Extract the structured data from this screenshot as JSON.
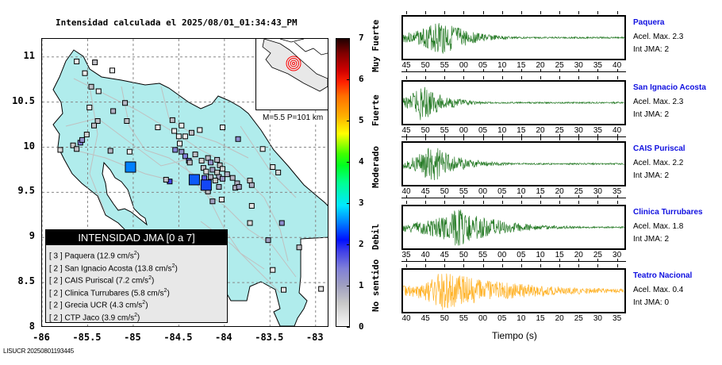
{
  "title": "Intensidad calculada el 2025/08/01_01:34:43_PM",
  "credit": "LISUCR 20250801193445",
  "map": {
    "y_ticks": [
      "11",
      "10.5",
      "10",
      "9.5",
      "9",
      "8.5",
      "8"
    ],
    "x_ticks": [
      "-86",
      "-85.5",
      "-85",
      "-84.5",
      "-84",
      "-83.5",
      "-83"
    ],
    "xlim": [
      -86,
      -82.85
    ],
    "ylim": [
      8,
      11.2
    ],
    "land_color": "#b0ecec",
    "inset_label": "M=5.5 P=101 km",
    "event_marker_color": "#ff0000",
    "stations": [
      {
        "lon": -85.62,
        "lat": 10.95,
        "int": 0
      },
      {
        "lon": -85.42,
        "lat": 10.94,
        "int": 0.6
      },
      {
        "lon": -85.53,
        "lat": 10.82,
        "int": 0.1
      },
      {
        "lon": -85.23,
        "lat": 10.85,
        "int": 0.1
      },
      {
        "lon": -85.38,
        "lat": 10.62,
        "int": 0.1
      },
      {
        "lon": -85.46,
        "lat": 10.67,
        "int": 0.6
      },
      {
        "lon": -85.09,
        "lat": 10.49,
        "int": 0.7
      },
      {
        "lon": -85.48,
        "lat": 10.44,
        "int": 0.1
      },
      {
        "lon": -85.22,
        "lat": 10.4,
        "int": 0.8
      },
      {
        "lon": -85.39,
        "lat": 10.29,
        "int": 0.6
      },
      {
        "lon": -85.07,
        "lat": 10.29,
        "int": 0.6
      },
      {
        "lon": -85.43,
        "lat": 10.24,
        "int": 0.6
      },
      {
        "lon": -85.66,
        "lat": 10.02,
        "int": 0.5
      },
      {
        "lon": -85.62,
        "lat": 9.98,
        "int": 0.6
      },
      {
        "lon": -85.58,
        "lat": 10.05,
        "int": 1.5
      },
      {
        "lon": -85.8,
        "lat": 9.97,
        "int": 0.3
      },
      {
        "lon": -85.51,
        "lat": 10.14,
        "int": 0.4
      },
      {
        "lon": -85.56,
        "lat": 10.08,
        "int": 1.2
      },
      {
        "lon": -85.25,
        "lat": 9.96,
        "int": 0.7
      },
      {
        "lon": -85.04,
        "lat": 9.95,
        "int": 0.1
      },
      {
        "lon": -85.03,
        "lat": 9.78,
        "int": 2.5,
        "big": true
      },
      {
        "lon": -84.6,
        "lat": 9.62,
        "int": 1.8
      },
      {
        "lon": -84.64,
        "lat": 9.64,
        "int": 0.6
      },
      {
        "lon": -84.13,
        "lat": 9.4,
        "int": 1
      },
      {
        "lon": -83.7,
        "lat": 9.35,
        "int": 0.2
      },
      {
        "lon": -83.72,
        "lat": 9.16,
        "int": 0.3
      },
      {
        "lon": -83.37,
        "lat": 9.16,
        "int": 1.3
      },
      {
        "lon": -83.52,
        "lat": 8.97,
        "int": 1
      },
      {
        "lon": -83.18,
        "lat": 8.89,
        "int": 0.6
      },
      {
        "lon": -83.47,
        "lat": 8.64,
        "int": 0.1
      },
      {
        "lon": -83.35,
        "lat": 8.42,
        "int": 0.2
      },
      {
        "lon": -82.94,
        "lat": 8.43,
        "int": 0.2
      },
      {
        "lon": -84.57,
        "lat": 10.3,
        "int": 0.6
      },
      {
        "lon": -84.73,
        "lat": 10.22,
        "int": 0.1
      },
      {
        "lon": -84.55,
        "lat": 10.18,
        "int": 0.1
      },
      {
        "lon": -84.47,
        "lat": 10.24,
        "int": 0.1
      },
      {
        "lon": -84.27,
        "lat": 10.19,
        "int": 0.1
      },
      {
        "lon": -84.02,
        "lat": 10.22,
        "int": 0.1
      },
      {
        "lon": -84.5,
        "lat": 10.12,
        "int": 0.1
      },
      {
        "lon": -84.43,
        "lat": 10.12,
        "int": 0.1
      },
      {
        "lon": -84.36,
        "lat": 10.16,
        "int": 0.6
      },
      {
        "lon": -84.49,
        "lat": 10.04,
        "int": 0.1
      },
      {
        "lon": -83.85,
        "lat": 10.09,
        "int": 1.3
      },
      {
        "lon": -84.54,
        "lat": 9.97,
        "int": 1.4
      },
      {
        "lon": -84.47,
        "lat": 9.95,
        "int": 1.2
      },
      {
        "lon": -84.43,
        "lat": 9.9,
        "int": 1.5
      },
      {
        "lon": -84.39,
        "lat": 9.85,
        "int": 1.6
      },
      {
        "lon": -84.32,
        "lat": 9.92,
        "int": 0.6
      },
      {
        "lon": -84.38,
        "lat": 9.83,
        "int": 0.6
      },
      {
        "lon": -84.25,
        "lat": 9.85,
        "int": 0.4
      },
      {
        "lon": -84.18,
        "lat": 9.88,
        "int": 0.7
      },
      {
        "lon": -84.15,
        "lat": 9.83,
        "int": 1.2
      },
      {
        "lon": -84.08,
        "lat": 9.86,
        "int": 0.7
      },
      {
        "lon": -84.05,
        "lat": 9.8,
        "int": 0.6
      },
      {
        "lon": -84.23,
        "lat": 9.77,
        "int": 0.6
      },
      {
        "lon": -84.2,
        "lat": 9.73,
        "int": 0.3
      },
      {
        "lon": -84.13,
        "lat": 9.75,
        "int": 1
      },
      {
        "lon": -84.08,
        "lat": 9.72,
        "int": 0.5
      },
      {
        "lon": -84.02,
        "lat": 9.76,
        "int": 0.4
      },
      {
        "lon": -84.15,
        "lat": 9.67,
        "int": 0.8
      },
      {
        "lon": -84.06,
        "lat": 9.67,
        "int": 0.9
      },
      {
        "lon": -84.1,
        "lat": 9.63,
        "int": 0.5
      },
      {
        "lon": -84.02,
        "lat": 9.65,
        "int": 1.1
      },
      {
        "lon": -83.97,
        "lat": 9.7,
        "int": 0.8
      },
      {
        "lon": -83.91,
        "lat": 9.66,
        "int": 0.7
      },
      {
        "lon": -83.86,
        "lat": 9.6,
        "int": 0.8
      },
      {
        "lon": -83.88,
        "lat": 9.55,
        "int": 0.8
      },
      {
        "lon": -83.84,
        "lat": 9.56,
        "int": 1
      },
      {
        "lon": -83.72,
        "lat": 9.63,
        "int": 0.4
      },
      {
        "lon": -83.7,
        "lat": 9.58,
        "int": 0.8
      },
      {
        "lon": -84.06,
        "lat": 9.56,
        "int": 0.9
      },
      {
        "lon": -84.18,
        "lat": 9.51,
        "int": 0.6
      },
      {
        "lon": -84.22,
        "lat": 9.66,
        "int": 1.7
      },
      {
        "lon": -84.33,
        "lat": 9.64,
        "int": 2.3,
        "big": true
      },
      {
        "lon": -84.2,
        "lat": 9.58,
        "int": 2.2,
        "big": true
      },
      {
        "lon": -84.03,
        "lat": 9.42,
        "int": 0.1
      },
      {
        "lon": -83.58,
        "lat": 9.98,
        "int": 0.1
      },
      {
        "lon": -83.47,
        "lat": 9.78,
        "int": 0.2
      },
      {
        "lon": -83.41,
        "lat": 9.72,
        "int": 0.3
      }
    ]
  },
  "legend": {
    "title": "INTENSIDAD JMA [0 a 7]",
    "items": [
      {
        "level": "[ 3 ]",
        "name": "Paquera",
        "accel": "(12.9 cm/s",
        "unit_sup": "2",
        "close": ")"
      },
      {
        "level": "[ 2 ]",
        "name": "San Ignacio Acosta",
        "accel": "(13.8 cm/s",
        "unit_sup": "2",
        "close": ")"
      },
      {
        "level": "[ 2 ]",
        "name": "CAIS Puriscal",
        "accel": "(7.2 cm/s",
        "unit_sup": "2",
        "close": ")"
      },
      {
        "level": "[ 2 ]",
        "name": "Clinica Turrubares",
        "accel": "(5.8 cm/s",
        "unit_sup": "2",
        "close": ")"
      },
      {
        "level": "[ 2 ]",
        "name": "Grecia UCR",
        "accel": "(4.3 cm/s",
        "unit_sup": "2",
        "close": ")"
      },
      {
        "level": "[ 2 ]",
        "name": "CTP Jaco",
        "accel": "(3.9 cm/s",
        "unit_sup": "2",
        "close": ")"
      }
    ]
  },
  "colorbar": {
    "ticks": [
      "0",
      "1",
      "2",
      "3",
      "4",
      "5",
      "6",
      "7"
    ],
    "labels": [
      "No sentido",
      "Debil",
      "Moderado",
      "Fuerte",
      "Muy Fuerte"
    ],
    "range": [
      0,
      7
    ]
  },
  "traces": [
    {
      "name": "Paquera",
      "accel": "Acel. Max. 2.3",
      "int": "Int JMA: 2",
      "color": "#006400",
      "ticks": [
        "45",
        "50",
        "55",
        "00",
        "05",
        "10",
        "15",
        "20",
        "25",
        "30",
        "35",
        "40"
      ],
      "peak_idx": 0.17,
      "decay": 0.12
    },
    {
      "name": "San Ignacio Acosta",
      "accel": "Acel. Max. 2.3",
      "int": "Int JMA: 2",
      "color": "#006400",
      "ticks": [
        "45",
        "50",
        "55",
        "00",
        "05",
        "10",
        "15",
        "20",
        "25",
        "30",
        "35",
        "40"
      ],
      "peak_idx": 0.08,
      "decay": 0.1
    },
    {
      "name": "CAIS Puriscal",
      "accel": "Acel. Max. 2.2",
      "int": "Int JMA: 2",
      "color": "#006400",
      "ticks": [
        "40",
        "45",
        "50",
        "55",
        "00",
        "05",
        "10",
        "15",
        "20",
        "25",
        "30",
        "35"
      ],
      "peak_idx": 0.13,
      "decay": 0.12
    },
    {
      "name": "Clinica Turrubares",
      "accel": "Acel. Max. 1.8",
      "int": "Int JMA: 2",
      "color": "#006400",
      "ticks": [
        "35",
        "40",
        "45",
        "50",
        "55",
        "00",
        "05",
        "10",
        "15",
        "20",
        "25",
        "30"
      ],
      "peak_idx": 0.25,
      "decay": 0.18
    },
    {
      "name": "Teatro Nacional",
      "accel": "Acel. Max. 0.4",
      "int": "Int JMA: 0",
      "color": "#ffa500",
      "ticks": [
        "40",
        "45",
        "50",
        "55",
        "00",
        "05",
        "10",
        "15",
        "20",
        "25",
        "30",
        "35"
      ],
      "peak_idx": 0.17,
      "decay": 0.35
    }
  ],
  "xaxis_label": "Tiempo (s)"
}
